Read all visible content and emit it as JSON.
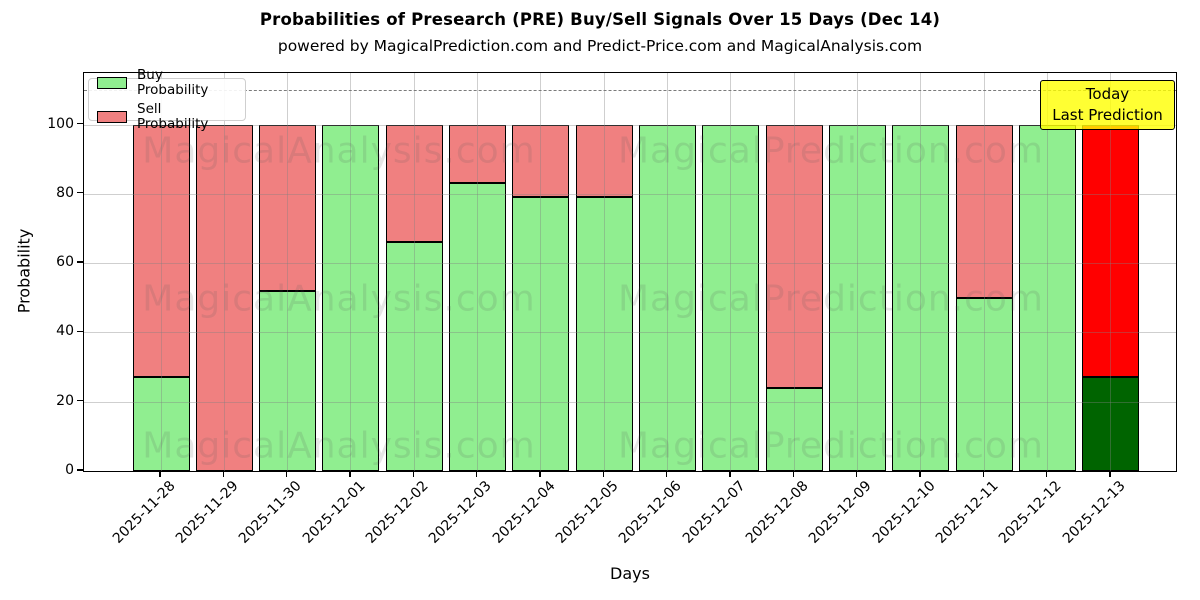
{
  "header": {
    "title": "Probabilities of Presearch (PRE) Buy/Sell Signals Over 15 Days (Dec 14)",
    "subtitle": "powered by MagicalPrediction.com and Predict-Price.com and MagicalAnalysis.com"
  },
  "axes": {
    "x_label": "Days",
    "y_label": "Probability"
  },
  "legend": {
    "items": [
      {
        "label": "Buy Probability",
        "color": "#90EE90"
      },
      {
        "label": "Sell Probability",
        "color": "#F08080"
      }
    ]
  },
  "annotation": {
    "lines": [
      "Today",
      "Last Prediction"
    ],
    "bg_color": "#FFFF00"
  },
  "watermarks": {
    "left": "MagicalAnalysis.com",
    "right": "MagicalPrediction.com"
  },
  "chart_data": {
    "type": "bar",
    "stacked": true,
    "title": "Probabilities of Presearch (PRE) Buy/Sell Signals Over 15 Days (Dec 14)",
    "xlabel": "Days",
    "ylabel": "Probability",
    "ylim": [
      0,
      115
    ],
    "yticks": [
      0,
      20,
      40,
      60,
      80,
      100
    ],
    "grid": true,
    "legend_position": "upper left",
    "dashed_reference_line_y": 110,
    "categories": [
      "2025-11-28",
      "2025-11-29",
      "2025-11-30",
      "2025-12-01",
      "2025-12-02",
      "2025-12-03",
      "2025-12-04",
      "2025-12-05",
      "2025-12-06",
      "2025-12-07",
      "2025-12-08",
      "2025-12-09",
      "2025-12-10",
      "2025-12-11",
      "2025-12-12",
      "2025-12-13"
    ],
    "series": [
      {
        "name": "Buy Probability",
        "color": "#90EE90",
        "today_color": "#006400",
        "values": [
          27,
          0,
          52,
          100,
          66,
          83,
          79,
          79,
          100,
          100,
          24,
          100,
          100,
          50,
          100,
          27
        ]
      },
      {
        "name": "Sell Probability",
        "color": "#F08080",
        "today_color": "#FF0000",
        "values": [
          73,
          100,
          48,
          0,
          34,
          17,
          21,
          21,
          0,
          0,
          76,
          0,
          0,
          50,
          0,
          73
        ]
      }
    ],
    "today_index": 15
  }
}
